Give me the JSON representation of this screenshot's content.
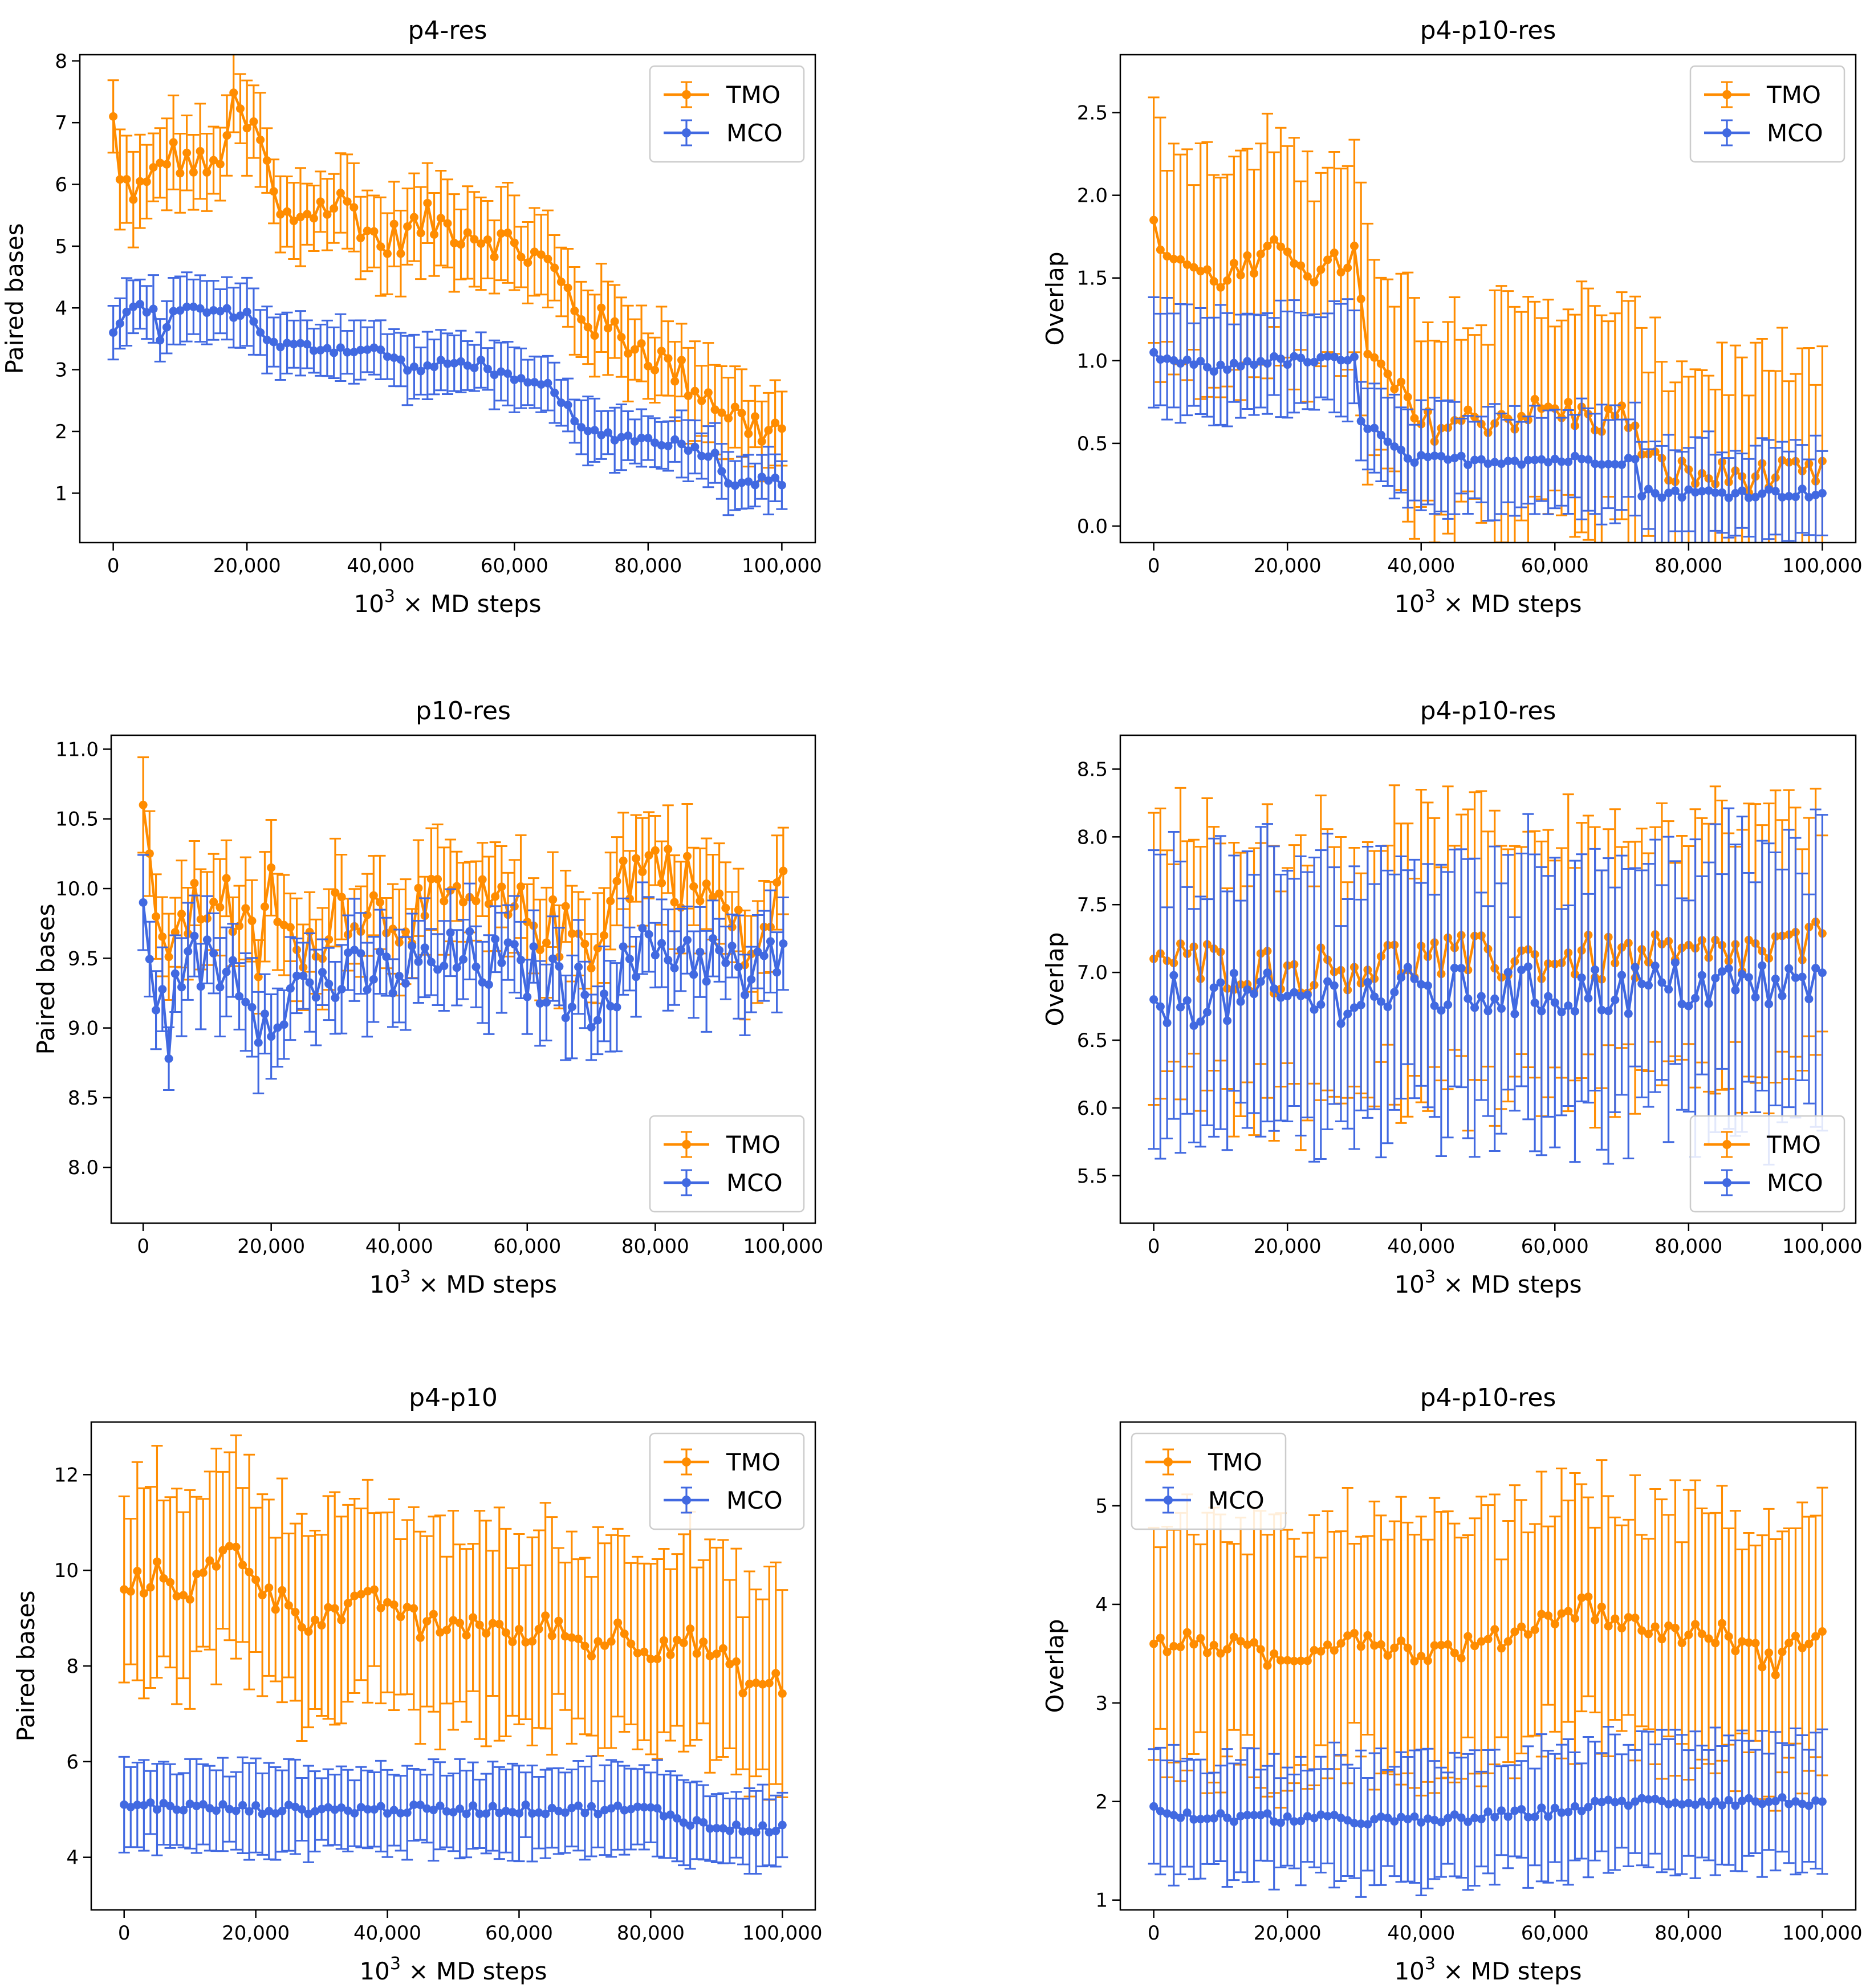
{
  "colors": {
    "tmo": "#ff8c00",
    "mco": "#4169e1",
    "axis": "#000000",
    "background": "#ffffff"
  },
  "chart_data": [
    {
      "type": "line",
      "title": "p4-res",
      "xlabel_prefix": "10",
      "xlabel_exp": "3",
      "xlabel_suffix": " × MD steps",
      "ylabel": "Paired bases",
      "xlim": [
        -5000,
        105000
      ],
      "ylim": [
        0.2,
        8.1
      ],
      "xticks": [
        0,
        20000,
        40000,
        60000,
        80000,
        100000
      ],
      "xtick_labels": [
        "0",
        "20,000",
        "40,000",
        "60,000",
        "80,000",
        "100,000"
      ],
      "yticks": [
        1,
        2,
        3,
        4,
        5,
        6,
        7,
        8
      ],
      "ytick_labels": [
        "1",
        "2",
        "3",
        "4",
        "5",
        "6",
        "7",
        "8"
      ],
      "legend": "top-right",
      "series": [
        {
          "name": "TMO",
          "color": "#ff8c00",
          "anchors": [
            [
              0,
              7.1
            ],
            [
              1000,
              6.0
            ],
            [
              5000,
              5.9
            ],
            [
              8000,
              6.5
            ],
            [
              15000,
              6.2
            ],
            [
              18000,
              7.2
            ],
            [
              22000,
              6.7
            ],
            [
              25000,
              5.4
            ],
            [
              30000,
              5.6
            ],
            [
              35000,
              5.7
            ],
            [
              40000,
              5.0
            ],
            [
              47000,
              5.4
            ],
            [
              55000,
              5.2
            ],
            [
              60000,
              5.0
            ],
            [
              65000,
              4.7
            ],
            [
              70000,
              3.9
            ],
            [
              75000,
              3.6
            ],
            [
              80000,
              3.3
            ],
            [
              85000,
              2.9
            ],
            [
              90000,
              2.5
            ],
            [
              95000,
              2.1
            ],
            [
              100000,
              2.0
            ]
          ],
          "noise": 0.3,
          "err": 0.65
        },
        {
          "name": "MCO",
          "color": "#4169e1",
          "anchors": [
            [
              0,
              3.6
            ],
            [
              3000,
              4.0
            ],
            [
              6000,
              4.0
            ],
            [
              7000,
              3.4
            ],
            [
              9000,
              4.0
            ],
            [
              20000,
              3.9
            ],
            [
              24000,
              3.4
            ],
            [
              40000,
              3.3
            ],
            [
              45000,
              3.0
            ],
            [
              50000,
              3.1
            ],
            [
              55000,
              3.1
            ],
            [
              60000,
              2.8
            ],
            [
              66000,
              2.7
            ],
            [
              70000,
              2.0
            ],
            [
              85000,
              1.8
            ],
            [
              90000,
              1.6
            ],
            [
              92000,
              1.2
            ],
            [
              100000,
              1.2
            ]
          ],
          "noise": 0.08,
          "err": 0.45
        }
      ]
    },
    {
      "type": "line",
      "title": "p4-p10-res",
      "xlabel_prefix": "10",
      "xlabel_exp": "3",
      "xlabel_suffix": " × MD steps",
      "ylabel": "Overlap",
      "xlim": [
        -5000,
        105000
      ],
      "ylim": [
        -0.1,
        2.85
      ],
      "xticks": [
        0,
        20000,
        40000,
        60000,
        80000,
        100000
      ],
      "xtick_labels": [
        "0",
        "20,000",
        "40,000",
        "60,000",
        "80,000",
        "100,000"
      ],
      "yticks": [
        0.0,
        0.5,
        1.0,
        1.5,
        2.0,
        2.5
      ],
      "ytick_labels": [
        "0.0",
        "0.5",
        "1.0",
        "1.5",
        "2.0",
        "2.5"
      ],
      "legend": "top-right",
      "series": [
        {
          "name": "TMO",
          "color": "#ff8c00",
          "anchors": [
            [
              0,
              1.85
            ],
            [
              1000,
              1.7
            ],
            [
              8000,
              1.5
            ],
            [
              15000,
              1.55
            ],
            [
              20000,
              1.7
            ],
            [
              25000,
              1.5
            ],
            [
              30000,
              1.65
            ],
            [
              32000,
              1.0
            ],
            [
              35000,
              0.9
            ],
            [
              40000,
              0.6
            ],
            [
              50000,
              0.65
            ],
            [
              60000,
              0.7
            ],
            [
              65000,
              0.65
            ],
            [
              72000,
              0.65
            ],
            [
              73000,
              0.4
            ],
            [
              80000,
              0.3
            ],
            [
              90000,
              0.3
            ],
            [
              100000,
              0.3
            ]
          ],
          "noise": 0.1,
          "err": 0.65
        },
        {
          "name": "MCO",
          "color": "#4169e1",
          "anchors": [
            [
              0,
              1.05
            ],
            [
              2000,
              1.0
            ],
            [
              10000,
              0.95
            ],
            [
              15000,
              1.0
            ],
            [
              30000,
              1.0
            ],
            [
              31000,
              0.65
            ],
            [
              35000,
              0.5
            ],
            [
              38000,
              0.4
            ],
            [
              72000,
              0.4
            ],
            [
              73000,
              0.2
            ],
            [
              100000,
              0.2
            ]
          ],
          "noise": 0.03,
          "err": 0.3
        }
      ]
    },
    {
      "type": "line",
      "title": "p10-res",
      "xlabel_prefix": "10",
      "xlabel_exp": "3",
      "xlabel_suffix": " × MD steps",
      "ylabel": "Paired bases",
      "xlim": [
        -5000,
        105000
      ],
      "ylim": [
        7.6,
        11.1
      ],
      "xticks": [
        0,
        20000,
        40000,
        60000,
        80000,
        100000
      ],
      "xtick_labels": [
        "0",
        "20,000",
        "40,000",
        "60,000",
        "80,000",
        "100,000"
      ],
      "yticks": [
        8.0,
        8.5,
        9.0,
        9.5,
        10.0,
        10.5,
        11.0
      ],
      "ytick_labels": [
        "8.0",
        "8.5",
        "9.0",
        "9.5",
        "10.0",
        "10.5",
        "11.0"
      ],
      "legend": "bottom-right",
      "series": [
        {
          "name": "TMO",
          "color": "#ff8c00",
          "anchors": [
            [
              0,
              10.6
            ],
            [
              2000,
              9.6
            ],
            [
              5000,
              9.7
            ],
            [
              12000,
              10.0
            ],
            [
              18000,
              9.5
            ],
            [
              20000,
              10.0
            ],
            [
              25000,
              9.4
            ],
            [
              30000,
              9.9
            ],
            [
              40000,
              9.8
            ],
            [
              50000,
              9.9
            ],
            [
              60000,
              9.8
            ],
            [
              70000,
              9.6
            ],
            [
              75000,
              10.1
            ],
            [
              80000,
              10.2
            ],
            [
              90000,
              9.9
            ],
            [
              95000,
              9.5
            ],
            [
              100000,
              10.0
            ]
          ],
          "noise": 0.22,
          "err": 0.32
        },
        {
          "name": "MCO",
          "color": "#4169e1",
          "anchors": [
            [
              0,
              9.9
            ],
            [
              2000,
              9.3
            ],
            [
              4000,
              8.9
            ],
            [
              6000,
              9.5
            ],
            [
              15000,
              9.4
            ],
            [
              18000,
              9.1
            ],
            [
              25000,
              9.3
            ],
            [
              40000,
              9.4
            ],
            [
              50000,
              9.5
            ],
            [
              60000,
              9.4
            ],
            [
              70000,
              9.2
            ],
            [
              80000,
              9.6
            ],
            [
              90000,
              9.5
            ],
            [
              95000,
              9.3
            ],
            [
              100000,
              9.6
            ]
          ],
          "noise": 0.22,
          "err": 0.3
        }
      ]
    },
    {
      "type": "line",
      "title": "p4-p10-res",
      "xlabel_prefix": "10",
      "xlabel_exp": "3",
      "xlabel_suffix": " × MD steps",
      "ylabel": "Overlap",
      "xlim": [
        -5000,
        105000
      ],
      "ylim": [
        5.15,
        8.75
      ],
      "xticks": [
        0,
        20000,
        40000,
        60000,
        80000,
        100000
      ],
      "xtick_labels": [
        "0",
        "20,000",
        "40,000",
        "60,000",
        "80,000",
        "100,000"
      ],
      "yticks": [
        5.5,
        6.0,
        6.5,
        7.0,
        7.5,
        8.0,
        8.5
      ],
      "ytick_labels": [
        "5.5",
        "6.0",
        "6.5",
        "7.0",
        "7.5",
        "8.0",
        "8.5"
      ],
      "legend": "bottom-right",
      "series": [
        {
          "name": "TMO",
          "color": "#ff8c00",
          "anchors": [
            [
              0,
              7.1
            ],
            [
              20000,
              7.0
            ],
            [
              40000,
              7.1
            ],
            [
              60000,
              7.1
            ],
            [
              80000,
              7.1
            ],
            [
              100000,
              7.2
            ]
          ],
          "noise": 0.18,
          "err": 0.95
        },
        {
          "name": "MCO",
          "color": "#4169e1",
          "anchors": [
            [
              0,
              6.8
            ],
            [
              20000,
              6.8
            ],
            [
              40000,
              6.85
            ],
            [
              60000,
              6.85
            ],
            [
              80000,
              6.9
            ],
            [
              100000,
              6.9
            ]
          ],
          "noise": 0.2,
          "err": 0.95
        }
      ]
    },
    {
      "type": "line",
      "title": "p4-p10",
      "xlabel_prefix": "10",
      "xlabel_exp": "3",
      "xlabel_suffix": " × MD steps",
      "ylabel": "Paired bases",
      "xlim": [
        -5000,
        105000
      ],
      "ylim": [
        2.9,
        13.1
      ],
      "xticks": [
        0,
        20000,
        40000,
        60000,
        80000,
        100000
      ],
      "xtick_labels": [
        "0",
        "20,000",
        "40,000",
        "60,000",
        "80,000",
        "100,000"
      ],
      "yticks": [
        4,
        6,
        8,
        10,
        12
      ],
      "ytick_labels": [
        "4",
        "6",
        "8",
        "10",
        "12"
      ],
      "legend": "top-right",
      "series": [
        {
          "name": "TMO",
          "color": "#ff8c00",
          "anchors": [
            [
              0,
              9.6
            ],
            [
              5000,
              9.9
            ],
            [
              10000,
              9.6
            ],
            [
              17000,
              10.5
            ],
            [
              22000,
              9.5
            ],
            [
              28000,
              9.0
            ],
            [
              35000,
              9.2
            ],
            [
              40000,
              9.4
            ],
            [
              45000,
              8.8
            ],
            [
              55000,
              8.9
            ],
            [
              60000,
              8.5
            ],
            [
              65000,
              8.9
            ],
            [
              70000,
              8.4
            ],
            [
              75000,
              8.7
            ],
            [
              80000,
              8.4
            ],
            [
              85000,
              8.6
            ],
            [
              90000,
              8.2
            ],
            [
              95000,
              7.6
            ],
            [
              100000,
              7.6
            ]
          ],
          "noise": 0.3,
          "err": 2.0
        },
        {
          "name": "MCO",
          "color": "#4169e1",
          "anchors": [
            [
              0,
              5.1
            ],
            [
              20000,
              5.0
            ],
            [
              40000,
              5.0
            ],
            [
              60000,
              5.0
            ],
            [
              70000,
              5.0
            ],
            [
              80000,
              5.0
            ],
            [
              90000,
              4.6
            ],
            [
              100000,
              4.6
            ]
          ],
          "noise": 0.1,
          "err": 0.85
        }
      ]
    },
    {
      "type": "line",
      "title": "p4-p10-res",
      "xlabel_prefix": "10",
      "xlabel_exp": "3",
      "xlabel_suffix": " × MD steps",
      "ylabel": "Overlap",
      "xlim": [
        -5000,
        105000
      ],
      "ylim": [
        0.9,
        5.85
      ],
      "xticks": [
        0,
        20000,
        40000,
        60000,
        80000,
        100000
      ],
      "xtick_labels": [
        "0",
        "20,000",
        "40,000",
        "60,000",
        "80,000",
        "100,000"
      ],
      "yticks": [
        1,
        2,
        3,
        4,
        5
      ],
      "ytick_labels": [
        "1",
        "2",
        "3",
        "4",
        "5"
      ],
      "legend": "top-left",
      "series": [
        {
          "name": "TMO",
          "color": "#ff8c00",
          "anchors": [
            [
              0,
              3.6
            ],
            [
              10000,
              3.6
            ],
            [
              20000,
              3.4
            ],
            [
              25000,
              3.6
            ],
            [
              30000,
              3.7
            ],
            [
              40000,
              3.5
            ],
            [
              50000,
              3.6
            ],
            [
              60000,
              3.9
            ],
            [
              65000,
              4.0
            ],
            [
              70000,
              3.8
            ],
            [
              80000,
              3.7
            ],
            [
              85000,
              3.7
            ],
            [
              93000,
              3.4
            ],
            [
              100000,
              3.8
            ]
          ],
          "noise": 0.12,
          "err": 1.2
        },
        {
          "name": "MCO",
          "color": "#4169e1",
          "anchors": [
            [
              0,
              1.95
            ],
            [
              2000,
              1.85
            ],
            [
              40000,
              1.8
            ],
            [
              50000,
              1.85
            ],
            [
              60000,
              1.9
            ],
            [
              70000,
              2.0
            ],
            [
              100000,
              2.0
            ]
          ],
          "noise": 0.05,
          "err": 0.6
        }
      ]
    }
  ]
}
